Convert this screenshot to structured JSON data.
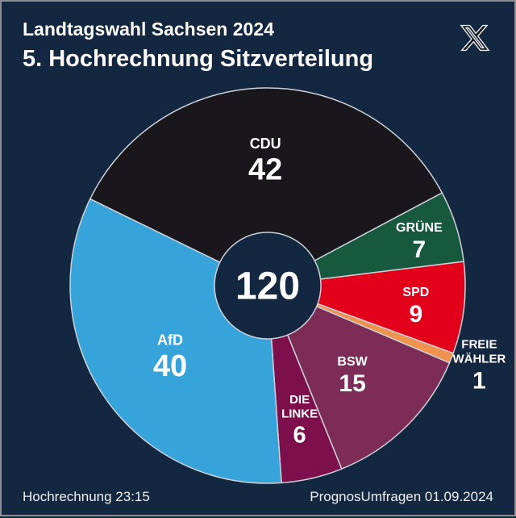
{
  "header": {
    "line1": "Landtagswahl Sachsen 2024",
    "line2": "5. Hochrechnung Sitzverteilung"
  },
  "icons": {
    "x_logo": "X"
  },
  "footer": {
    "left": "Hochrechnung 23:15",
    "right": "PrognosUmfragen 01.09.2024"
  },
  "colors": {
    "background": "#142740",
    "text": "#ffffff",
    "slice_border": "#ccd2d8"
  },
  "chart_data": {
    "type": "pie",
    "subtype": "donut",
    "title": "5. Hochrechnung Sitzverteilung",
    "total": 120,
    "center_label": "120",
    "start_angle_deg": -64,
    "legend_position": "on-slices",
    "segments": [
      {
        "party": "CDU",
        "seats": 42,
        "color": "#1a171c"
      },
      {
        "party": "GRÜNE",
        "seats": 7,
        "color": "#17593f"
      },
      {
        "party": "SPD",
        "seats": 9,
        "color": "#e3001b"
      },
      {
        "party": "FREIE WÄHLER",
        "seats": 1,
        "color": "#ee924e",
        "label_outside": true
      },
      {
        "party": "BSW",
        "seats": 15,
        "color": "#7c2c57"
      },
      {
        "party": "DIE LINKE",
        "seats": 6,
        "color": "#7d0f4d"
      },
      {
        "party": "AfD",
        "seats": 40,
        "color": "#36a3db"
      }
    ]
  }
}
